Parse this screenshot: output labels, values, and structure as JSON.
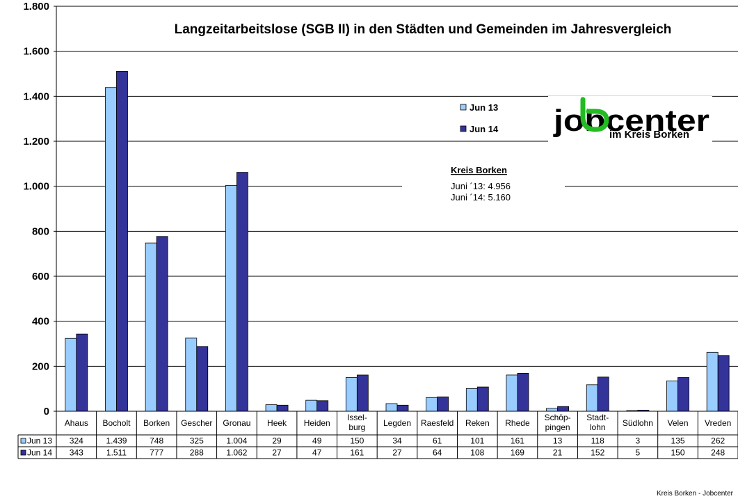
{
  "chart_data": {
    "type": "bar",
    "title": "Langzeitarbeitslose (SGB II) in den Städten und Gemeinden im Jahresvergleich",
    "categories": [
      [
        "Ahaus"
      ],
      [
        "Bocholt"
      ],
      [
        "Borken"
      ],
      [
        "Gescher"
      ],
      [
        "Gronau"
      ],
      [
        "Heek"
      ],
      [
        "Heiden"
      ],
      [
        "Issel-",
        "burg"
      ],
      [
        "Legden"
      ],
      [
        "Raesfeld"
      ],
      [
        "Reken"
      ],
      [
        "Rhede"
      ],
      [
        "Schöp-",
        "pingen"
      ],
      [
        "Stadt-",
        "lohn"
      ],
      [
        "Südlohn"
      ],
      [
        "Velen"
      ],
      [
        "Vreden"
      ]
    ],
    "series": [
      {
        "name": "Jun 13",
        "color": "#99ccff",
        "values": [
          324,
          1439,
          748,
          325,
          1004,
          29,
          49,
          150,
          34,
          61,
          101,
          161,
          13,
          118,
          3,
          135,
          262
        ],
        "labels": [
          "324",
          "1.439",
          "748",
          "325",
          "1.004",
          "29",
          "49",
          "150",
          "34",
          "61",
          "101",
          "161",
          "13",
          "118",
          "3",
          "135",
          "262"
        ]
      },
      {
        "name": "Jun 14",
        "color": "#333399",
        "values": [
          343,
          1511,
          777,
          288,
          1062,
          27,
          47,
          161,
          27,
          64,
          108,
          169,
          21,
          152,
          5,
          150,
          248
        ],
        "labels": [
          "343",
          "1.511",
          "777",
          "288",
          "1.062",
          "27",
          "47",
          "161",
          "27",
          "64",
          "108",
          "169",
          "21",
          "152",
          "5",
          "150",
          "248"
        ]
      }
    ],
    "ylim": [
      0,
      1800
    ],
    "yticks": [
      0,
      200,
      400,
      600,
      800,
      1000,
      1200,
      1400,
      1600,
      1800
    ],
    "ytick_labels": [
      "0",
      "200",
      "400",
      "600",
      "800",
      "1.000",
      "1.200",
      "1.400",
      "1.600",
      "1.800"
    ],
    "grid": true,
    "legend_position": "top-center",
    "data_table": true
  },
  "annotation": {
    "title": "Kreis Borken",
    "lines": [
      "Juni ´13: 4.956",
      "Juni ´14: 5.160"
    ]
  },
  "logo": {
    "main": "jobcenter",
    "sub": "im Kreis Borken",
    "accent_color": "#22bb22"
  },
  "footer": "Kreis Borken - Jobcenter"
}
